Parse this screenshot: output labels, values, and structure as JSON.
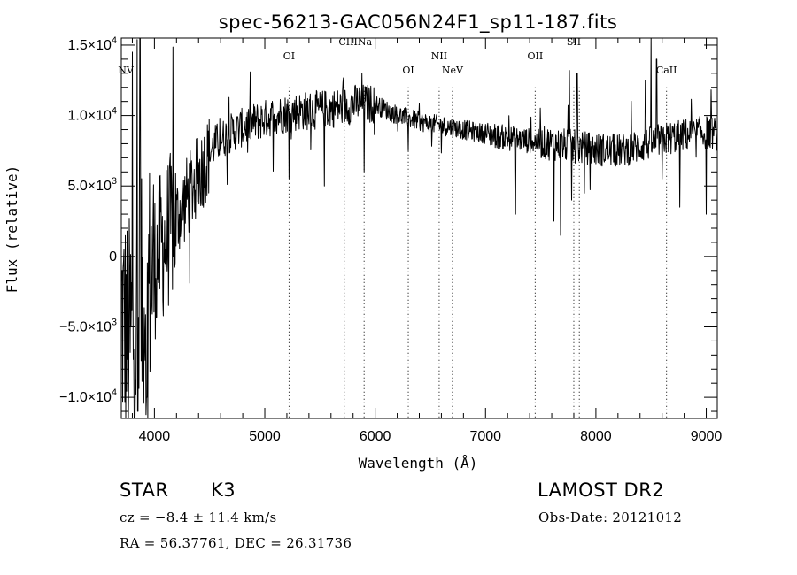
{
  "chart_data": {
    "type": "line",
    "title": "spec-56213-GAC056N24F1_sp11-187.fits",
    "xlabel": "Wavelength (Å)",
    "ylabel": "Flux (relative)",
    "xlim": [
      3700,
      9100
    ],
    "ylim": [
      -11500,
      15500
    ],
    "x_ticks": [
      {
        "value": 4000,
        "label": "4000"
      },
      {
        "value": 5000,
        "label": "5000"
      },
      {
        "value": 6000,
        "label": "6000"
      },
      {
        "value": 7000,
        "label": "7000"
      },
      {
        "value": 8000,
        "label": "8000"
      },
      {
        "value": 9000,
        "label": "9000"
      }
    ],
    "y_ticks": [
      {
        "value": 15000,
        "mantissa": "1.5",
        "exp": "4"
      },
      {
        "value": 10000,
        "mantissa": "1.0",
        "exp": "4"
      },
      {
        "value": 5000,
        "mantissa": "5.0",
        "exp": "3"
      },
      {
        "value": 0,
        "mantissa": "0",
        "exp": ""
      },
      {
        "value": -5000,
        "mantissa": "−5.0",
        "exp": "3"
      },
      {
        "value": -10000,
        "mantissa": "−1.0",
        "exp": "4"
      }
    ],
    "lines": [
      {
        "label": "NV",
        "wavelength": 3740,
        "label_y": 13000,
        "marker": false
      },
      {
        "label": "OI",
        "wavelength": 5220,
        "label_y": 14000,
        "marker": true
      },
      {
        "label": "CIIINa",
        "wavelength": 5820,
        "label_y": 15000,
        "marker": false
      },
      {
        "label": "",
        "wavelength": 5720,
        "label_y": null,
        "marker": true
      },
      {
        "label": "",
        "wavelength": 5900,
        "label_y": null,
        "marker": true
      },
      {
        "label": "OI",
        "wavelength": 6300,
        "label_y": 13000,
        "marker": true
      },
      {
        "label": "NII",
        "wavelength": 6580,
        "label_y": 14000,
        "marker": true
      },
      {
        "label": "NeV",
        "wavelength": 6700,
        "label_y": 13000,
        "marker": true
      },
      {
        "label": "OII",
        "wavelength": 7450,
        "label_y": 14000,
        "marker": true
      },
      {
        "label": "SII",
        "wavelength": 7800,
        "label_y": 15000,
        "marker": true
      },
      {
        "label": "",
        "wavelength": 7850,
        "label_y": null,
        "marker": true
      },
      {
        "label": "CaII",
        "wavelength": 8640,
        "label_y": 13000,
        "marker": true
      }
    ],
    "spectrum_anchors": [
      [
        3700,
        -4000
      ],
      [
        3760,
        -6000
      ],
      [
        3820,
        -5000
      ],
      [
        3900,
        -3000
      ],
      [
        3960,
        -1500
      ],
      [
        4050,
        500
      ],
      [
        4150,
        2000
      ],
      [
        4250,
        3500
      ],
      [
        4350,
        5000
      ],
      [
        4450,
        6500
      ],
      [
        4550,
        8000
      ],
      [
        4700,
        8800
      ],
      [
        4900,
        9500
      ],
      [
        5100,
        10000
      ],
      [
        5300,
        10300
      ],
      [
        5500,
        10400
      ],
      [
        5700,
        10600
      ],
      [
        5850,
        10900
      ],
      [
        6000,
        10800
      ],
      [
        6150,
        10200
      ],
      [
        6300,
        9800
      ],
      [
        6450,
        9500
      ],
      [
        6600,
        9300
      ],
      [
        6800,
        9000
      ],
      [
        7000,
        8700
      ],
      [
        7200,
        8400
      ],
      [
        7400,
        8200
      ],
      [
        7600,
        8000
      ],
      [
        7800,
        7800
      ],
      [
        8000,
        7600
      ],
      [
        8200,
        7500
      ],
      [
        8400,
        7800
      ],
      [
        8600,
        8300
      ],
      [
        8800,
        8600
      ],
      [
        9000,
        8800
      ],
      [
        9100,
        8700
      ]
    ],
    "spectrum_features": [
      {
        "wavelength": 3800,
        "flux": 14500
      },
      {
        "wavelength": 3870,
        "flux": 15500
      },
      {
        "wavelength": 3850,
        "flux": -11000
      },
      {
        "wavelength": 3930,
        "flux": -10000
      },
      {
        "wavelength": 5220,
        "flux": 5500
      },
      {
        "wavelength": 5540,
        "flux": 5000
      },
      {
        "wavelength": 5880,
        "flux": 13000
      },
      {
        "wavelength": 5900,
        "flux": 6000
      },
      {
        "wavelength": 6300,
        "flux": 7500
      },
      {
        "wavelength": 7270,
        "flux": 3000
      },
      {
        "wavelength": 7620,
        "flux": 2500
      },
      {
        "wavelength": 7680,
        "flux": 1500
      },
      {
        "wavelength": 7760,
        "flux": 13200
      },
      {
        "wavelength": 7780,
        "flux": 4000
      },
      {
        "wavelength": 7830,
        "flux": 13000
      },
      {
        "wavelength": 8450,
        "flux": 12500
      },
      {
        "wavelength": 8500,
        "flux": 16000
      },
      {
        "wavelength": 8550,
        "flux": 14000
      },
      {
        "wavelength": 8600,
        "flux": 5500
      },
      {
        "wavelength": 8760,
        "flux": 3500
      },
      {
        "wavelength": 9000,
        "flux": 3000
      }
    ],
    "grid": false,
    "legend": "none"
  },
  "info": {
    "object_class": "STAR",
    "subclass": "K3",
    "survey": "LAMOST DR2",
    "velocity": "cz = −8.4 ± 11.4 km/s",
    "obs_date": "Obs-Date: 20121012",
    "coords": "RA =  56.37761, DEC =  26.31736"
  }
}
